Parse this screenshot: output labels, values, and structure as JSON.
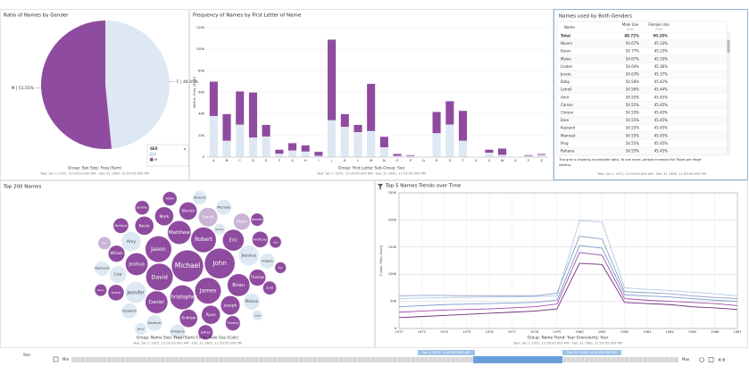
{
  "chart_data": [
    {
      "type": "pie",
      "title": "Ratio of Names by Gender",
      "categories": [
        "F",
        "M"
      ],
      "values": [
        48.45,
        51.55
      ],
      "value_labels": [
        "F | 48.45%",
        "M | 51.55%"
      ],
      "colors": [
        "#dde8f3",
        "#8f4b9f"
      ],
      "legend_title": "SEX",
      "footer": [
        "Group: Sex   Size: Freq (Sum)",
        "Year: Jan 1 1972, 12:00:00.000 AM - Dec 31 1982, 11:59:59.999 PM"
      ]
    },
    {
      "type": "bar",
      "stacked": true,
      "title": "Frequency of Names by First Letter of Name",
      "y_label": "Metric: Freq (Sum)",
      "categories": [
        "A",
        "B",
        "C",
        "D",
        "E",
        "F",
        "G",
        "H",
        "I",
        "J",
        "K",
        "L",
        "M",
        "N",
        "O",
        "P",
        "Q",
        "R",
        "S",
        "T",
        "U",
        "V",
        "W",
        "X",
        "Y",
        "Z"
      ],
      "series": [
        {
          "color": "#dde8f3",
          "values": [
            38000,
            15000,
            30000,
            18000,
            19000,
            3000,
            6000,
            5000,
            1000,
            34000,
            28000,
            23000,
            24000,
            9000,
            1000,
            1000,
            0,
            22000,
            30000,
            15000,
            0,
            4000,
            2000,
            0,
            1000,
            2000
          ]
        },
        {
          "color": "#8f4b9f",
          "values": [
            32000,
            25000,
            31000,
            42000,
            11000,
            4000,
            7000,
            6000,
            4000,
            75000,
            12000,
            7000,
            44000,
            10000,
            2000,
            1000,
            0,
            20000,
            22000,
            28000,
            0,
            3000,
            6000,
            0,
            1000,
            1000
          ]
        }
      ],
      "ylim": [
        0,
        120000
      ],
      "yticks": [
        0,
        {
          "value": 20000,
          "label": "20K"
        },
        {
          "value": 40000,
          "label": "40K"
        },
        {
          "value": 60000,
          "label": "60K"
        },
        {
          "value": 80000,
          "label": "80K"
        },
        {
          "value": 100000,
          "label": "100K"
        },
        {
          "value": 120000,
          "label": "120K"
        }
      ],
      "grid": true,
      "footer": [
        "Group: First Letter   Sub-Group: Sex",
        "Year: Jan 1 1972, 12:00:00.000 AM - Dec 31 1982, 11:59:59.999 PM"
      ]
    },
    {
      "type": "bubble",
      "title": "Top 200 Names",
      "categories": [
        "Michael",
        "John",
        "David",
        "Jason",
        "James",
        "Robert",
        "Christopher",
        "Matthew",
        "Joshua",
        "Daniel",
        "Brian",
        "Eric",
        "Jennifer",
        "Jessica",
        "Amy",
        "Sarah",
        "Joseph",
        "Ryan",
        "Kevin",
        "Mark",
        "Andrew",
        "Steven",
        "Lisa",
        "Thomas",
        "William",
        "Nicole",
        "Melissa",
        "Heather",
        "Justin",
        "Anthony",
        "Angela",
        "Elizabeth",
        "Michelle",
        "Kimberly",
        "Richard",
        "Timothy",
        "Jeffrey",
        "Stephanie",
        "Jeremy",
        "Adam",
        "Amanda",
        "Scott",
        "Erin",
        "Brandon",
        "Emily",
        "Aaron",
        "Kyle",
        "Rachel",
        "Paul",
        "Laura"
      ],
      "values": [
        110,
        100,
        80,
        75,
        75,
        70,
        65,
        60,
        55,
        55,
        55,
        50,
        50,
        45,
        42,
        40,
        40,
        38,
        38,
        38,
        35,
        35,
        32,
        30,
        30,
        30,
        30,
        28,
        28,
        28,
        26,
        26,
        26,
        25,
        25,
        24,
        24,
        24,
        22,
        22,
        22,
        20,
        18,
        18,
        16,
        16,
        15,
        14,
        14,
        12
      ],
      "colors": [
        "#8f4b9f",
        "#8f4b9f",
        "#8f4b9f",
        "#8f4b9f",
        "#8f4b9f",
        "#8f4b9f",
        "#8f4b9f",
        "#8f4b9f",
        "#8f4b9f",
        "#8f4b9f",
        "#8f4b9f",
        "#8f4b9f",
        "#dde8f3",
        "#dde8f3",
        "#dde8f3",
        "#c9b3d6",
        "#8f4b9f",
        "#8f4b9f",
        "#8f4b9f",
        "#8f4b9f",
        "#8f4b9f",
        "#8f4b9f",
        "#dde8f3",
        "#8f4b9f",
        "#8f4b9f",
        "#c9b3d6",
        "#dde8f3",
        "#dde8f3",
        "#8f4b9f",
        "#8f4b9f",
        "#dde8f3",
        "#dde8f3",
        "#dde8f3",
        "#dde8f3",
        "#8f4b9f",
        "#8f4b9f",
        "#8f4b9f",
        "#dde8f3",
        "#8f4b9f",
        "#8f4b9f",
        "#dde8f3",
        "#8f4b9f",
        "#c9b3d6",
        "#8f4b9f",
        "#dde8f3",
        "#8f4b9f",
        "#8f4b9f",
        "#dde8f3",
        "#8f4b9f",
        "#dde8f3"
      ],
      "footer": [
        "Group: Name   Size: Freq (Sum)   Color: Male Use (Calc)",
        "Year: Jan 1 1972, 12:00:00.000 AM - Dec 31 1982, 11:59:59.999 PM"
      ]
    },
    {
      "type": "line",
      "title": "Top 5 Names Trends over Time",
      "y_label": "Y Axis: Freq (Sum)",
      "x": [
        1972,
        1973,
        1974,
        1975,
        1976,
        1977,
        1978,
        1979,
        1980,
        1981,
        1982,
        1983,
        1984,
        1985,
        1986,
        1987
      ],
      "xlim": [
        1972,
        1987
      ],
      "xticks": [
        1972,
        1973,
        1974,
        1975,
        1976,
        1977,
        1978,
        1979,
        1980,
        1981,
        1982,
        1983,
        1984,
        1985,
        1986,
        1987
      ],
      "ylim": [
        0,
        250000
      ],
      "yticks": [
        0,
        {
          "value": 50000,
          "label": "50K"
        },
        {
          "value": 100000,
          "label": "100K"
        },
        {
          "value": 150000,
          "label": "150K"
        },
        {
          "value": 200000,
          "label": "200K"
        },
        {
          "value": 250000,
          "label": "250K"
        }
      ],
      "grid": true,
      "series": [
        {
          "color": "#b3cae6",
          "values": [
            55000,
            56000,
            57000,
            57000,
            58000,
            58000,
            59000,
            60000,
            199000,
            196000,
            75000,
            72000,
            70000,
            67000,
            64000,
            60000
          ]
        },
        {
          "color": "#8fa2c0",
          "values": [
            60000,
            61000,
            61000,
            60000,
            60000,
            60000,
            60000,
            65000,
            170000,
            165000,
            68000,
            66000,
            64000,
            60000,
            57000,
            55000
          ]
        },
        {
          "color": "#7d9bd0",
          "values": [
            40000,
            42000,
            44000,
            45000,
            46000,
            47000,
            48000,
            52000,
            153000,
            148000,
            62000,
            60000,
            58000,
            55000,
            52000,
            50000
          ]
        },
        {
          "color": "#a24ca8",
          "values": [
            30000,
            32000,
            34000,
            35000,
            36000,
            38000,
            40000,
            45000,
            140000,
            135000,
            55000,
            52000,
            50000,
            48000,
            46000,
            42000
          ]
        },
        {
          "color": "#6b2c7a",
          "values": [
            20000,
            22000,
            24000,
            26000,
            28000,
            30000,
            32000,
            36000,
            120000,
            118000,
            48000,
            46000,
            44000,
            40000,
            38000,
            35000
          ]
        }
      ],
      "footer": [
        "Group: Name   Trend: Year   Granularity: Year",
        "Year: Jan 1 1972, 12:00:00.000 AM - Dec 31 1982, 11:59:59.999 PM"
      ]
    }
  ],
  "table": {
    "title": "Names used by Both Genders",
    "columns": [
      {
        "label": "Name"
      },
      {
        "label": "Male Use",
        "sub": "(Calc)"
      },
      {
        "label": "Female Use",
        "sub": "(Calc)"
      }
    ],
    "rows": [
      [
        "Total",
        "49.72%",
        "50.28%"
      ],
      [
        "Naomi",
        "54.67%",
        "45.33%"
      ],
      [
        "Karen",
        "54.77%",
        "45.23%"
      ],
      [
        "Mylee",
        "54.67%",
        "45.33%"
      ],
      [
        "Linden",
        "54.64%",
        "45.36%"
      ],
      [
        "Jessie",
        "54.63%",
        "45.37%"
      ],
      [
        "Baby",
        "54.58%",
        "45.42%"
      ],
      [
        "Letrell",
        "54.56%",
        "45.44%"
      ],
      [
        "Amir",
        "54.55%",
        "45.45%"
      ],
      [
        "Carson",
        "54.55%",
        "45.45%"
      ],
      [
        "Clinton",
        "54.55%",
        "45.45%"
      ],
      [
        "Dani",
        "54.55%",
        "45.45%"
      ],
      [
        "Kayland",
        "54.55%",
        "45.45%"
      ],
      [
        "Manreet",
        "54.55%",
        "45.45%"
      ],
      [
        "Ping",
        "54.55%",
        "45.45%"
      ],
      [
        "Rohana",
        "54.55%",
        "45.45%"
      ]
    ],
    "note": [
      "The grid is showing incomplete data. To see more, please increase the 'Rows per Page'",
      "setting."
    ],
    "footer": "Year: Jan 1 1972, 12:00:00.000 AM - Dec 31 1982, 11:59:59.999 PM"
  },
  "timeline": {
    "label": "Year",
    "min_label": "Min",
    "max_label": "Max",
    "start": "Jan 1 1972, 12:00:00.000 AM",
    "end": "Dec 31 1982, 11:59:59.999 PM"
  }
}
